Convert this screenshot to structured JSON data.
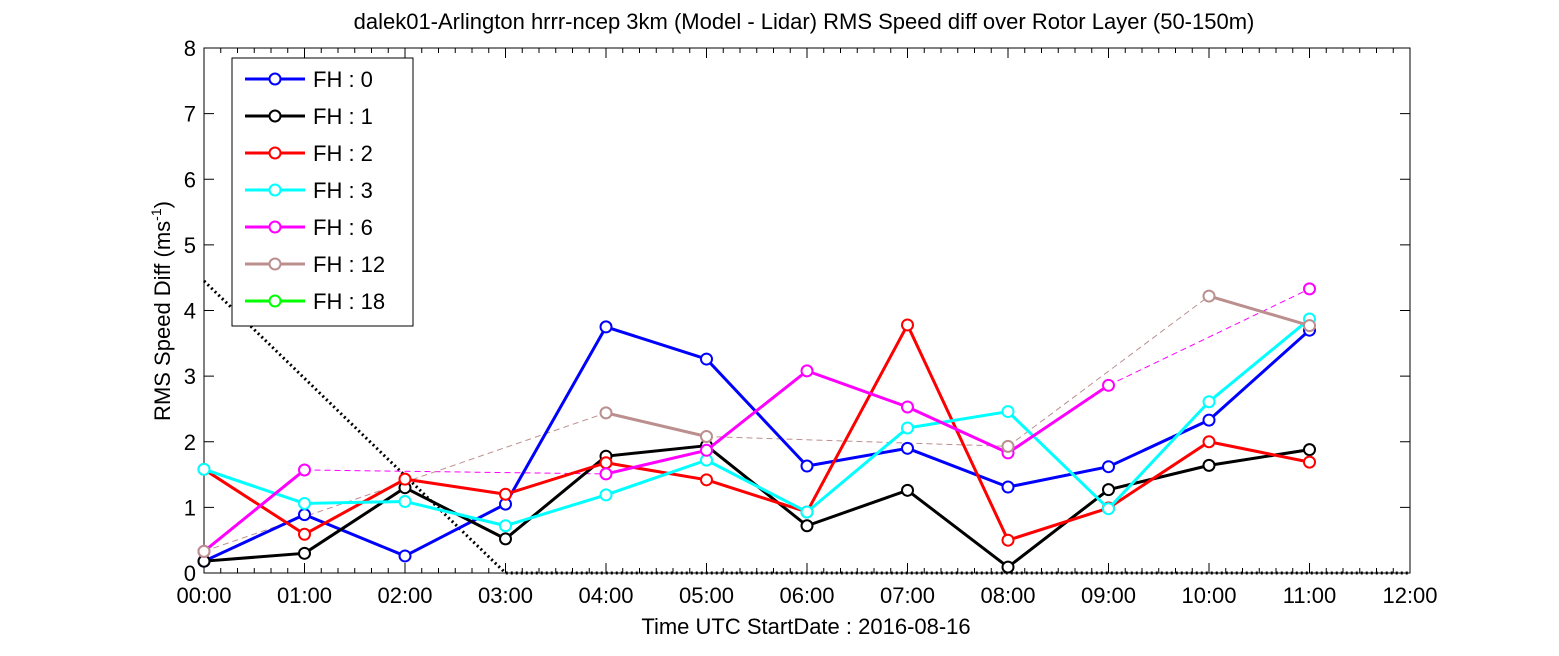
{
  "chart_data": {
    "type": "line",
    "title": "dalek01-Arlington hrrr-ncep 3km (Model - Lidar) RMS Speed diff over Rotor Layer (50-150m)",
    "ylabel_main": "RMS Speed Diff (ms",
    "ylabel_sup": "-1",
    "ylabel_close": ")",
    "xlabel": "Time UTC    StartDate : 2016-08-16",
    "xlim": [
      0,
      12
    ],
    "ylim": [
      0,
      8
    ],
    "x_ticks": [
      "00:00",
      "01:00",
      "02:00",
      "03:00",
      "04:00",
      "05:00",
      "06:00",
      "07:00",
      "08:00",
      "09:00",
      "10:00",
      "11:00",
      "12:00"
    ],
    "y_ticks": [
      "0",
      "1",
      "2",
      "3",
      "4",
      "5",
      "6",
      "7",
      "8"
    ],
    "legend_position": "top-left",
    "series": [
      {
        "name": "FH : 0",
        "color": "#0000ff",
        "x": [
          0,
          1,
          2,
          3,
          4,
          5,
          6,
          7,
          8,
          9,
          10,
          11
        ],
        "y": [
          0.18,
          0.89,
          0.26,
          1.05,
          3.75,
          3.26,
          1.63,
          1.9,
          1.31,
          1.62,
          2.33,
          3.7
        ]
      },
      {
        "name": "FH : 1",
        "color": "#000000",
        "x": [
          0,
          1,
          2,
          3,
          4,
          5,
          6,
          7,
          8,
          9,
          10,
          11
        ],
        "y": [
          0.18,
          0.3,
          1.3,
          0.52,
          1.78,
          1.94,
          0.72,
          1.26,
          0.09,
          1.27,
          1.64,
          1.88
        ]
      },
      {
        "name": "FH : 2",
        "color": "#ff0000",
        "x": [
          0,
          1,
          2,
          3,
          4,
          5,
          6,
          7,
          8,
          9,
          10,
          11
        ],
        "y": [
          1.58,
          0.59,
          1.43,
          1.2,
          1.68,
          1.42,
          0.93,
          3.78,
          0.5,
          0.99,
          2.0,
          1.69
        ]
      },
      {
        "name": "FH : 3",
        "color": "#00ffff",
        "x": [
          0,
          1,
          2,
          3,
          4,
          5,
          6,
          7,
          8,
          9,
          10,
          11
        ],
        "y": [
          1.58,
          1.06,
          1.09,
          0.72,
          1.19,
          1.72,
          0.93,
          2.21,
          2.46,
          0.98,
          2.61,
          3.87
        ]
      },
      {
        "name": "FH : 6",
        "color": "#ff00ff",
        "x": [
          0,
          1,
          4,
          5,
          6,
          7,
          8,
          9,
          11
        ],
        "y": [
          0.33,
          1.57,
          1.51,
          1.87,
          3.08,
          2.53,
          1.83,
          2.86,
          4.33
        ]
      },
      {
        "name": "FH : 12",
        "color": "#bc8f8f",
        "x": [
          0,
          4,
          5,
          8,
          10,
          11
        ],
        "y": [
          0.33,
          2.44,
          2.08,
          1.93,
          4.22,
          3.77
        ]
      },
      {
        "name": "FH : 18",
        "color": "#00ff00",
        "x": [],
        "y": []
      }
    ],
    "dotted_line": {
      "x": [
        0,
        3,
        12
      ],
      "y": [
        4.45,
        0,
        0
      ]
    }
  }
}
